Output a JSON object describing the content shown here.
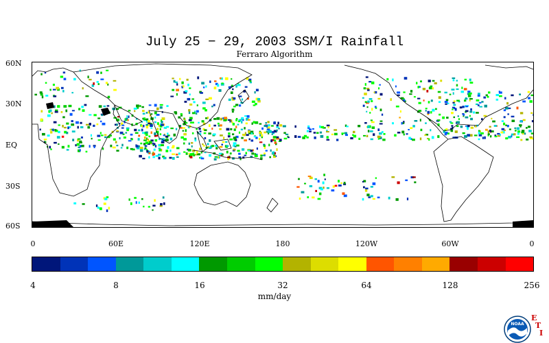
{
  "title": "July 25 − 29, 2003 SSM/I Rainfall",
  "subtitle": "Ferraro Algorithm",
  "lat_labels": [
    "60N",
    "30N",
    "EQ",
    "30S",
    "60S"
  ],
  "lon_labels": [
    "0",
    "60E",
    "120E",
    "180",
    "120W",
    "60W",
    "0"
  ],
  "colorbar": {
    "colors": [
      "#00167a",
      "#0033b8",
      "#0055ff",
      "#009999",
      "#00cccc",
      "#00ffff",
      "#009900",
      "#00cc00",
      "#00ff00",
      "#b3b300",
      "#dddd00",
      "#ffff00",
      "#ff5500",
      "#ff8000",
      "#ffaa00",
      "#990000",
      "#cc0000",
      "#ff0000"
    ],
    "tick_labels": [
      "4",
      "8",
      "16",
      "32",
      "64",
      "128",
      "256"
    ]
  },
  "units": "mm/day",
  "logo_text": "NOAA",
  "eti_letters": [
    "E",
    "T",
    "I"
  ]
}
